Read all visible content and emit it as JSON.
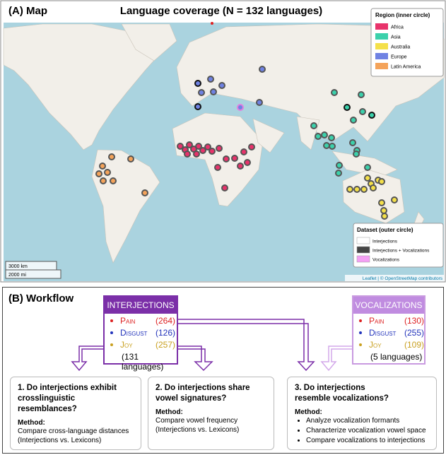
{
  "map": {
    "label": "(A) Map",
    "title": "Language coverage (N = 132 languages)",
    "region_legend": {
      "title": "Region (inner circle)",
      "items": [
        {
          "label": "Africa",
          "color": "#e8336b"
        },
        {
          "label": "Asia",
          "color": "#3bd1ab"
        },
        {
          "label": "Australia",
          "color": "#f4e04a"
        },
        {
          "label": "Europe",
          "color": "#6f82e3"
        },
        {
          "label": "Latin America",
          "color": "#f4a35a"
        }
      ]
    },
    "dataset_legend": {
      "title": "Dataset (outer circle)",
      "items": [
        {
          "label": "Interjections",
          "color": "#ffffff"
        },
        {
          "label": "Interjections + Vocalizations",
          "color": "#444444"
        },
        {
          "label": "Vocalizations",
          "color": "#f4a0f4"
        }
      ]
    },
    "scale": [
      "3000 km",
      "2000 mi"
    ],
    "attribution": "Leaflet | © OpenStreetMap contributors"
  },
  "workflow": {
    "label": "(B) Workflow",
    "datasets": [
      {
        "title": "INTERJECTIONS",
        "items": [
          {
            "emotion": "Pain",
            "count": "(264)"
          },
          {
            "emotion": "Disgust",
            "count": "(126)"
          },
          {
            "emotion": "Joy",
            "count": "(257)"
          }
        ],
        "note": "(131 languages)"
      },
      {
        "title": "VOCALIZATIONS",
        "items": [
          {
            "emotion": "Pain",
            "count": "(130)"
          },
          {
            "emotion": "Disgust",
            "count": "(255)"
          },
          {
            "emotion": "Joy",
            "count": "(109)"
          }
        ],
        "note": "(5 languages)"
      }
    ],
    "questions": [
      {
        "title": [
          "1. Do interjections exhibit",
          "crosslinguistic resemblances?"
        ],
        "method_label": "Method:",
        "method": [
          "Compare cross-language distances",
          "(Interjections vs. Lexicons)"
        ]
      },
      {
        "title": [
          "2. Do interjections share",
          "vowel signatures?"
        ],
        "method_label": "Method:",
        "method": [
          "Compare vowel frequency",
          "(Interjections vs. Lexicons)"
        ]
      },
      {
        "title": [
          "3. Do interjections",
          "resemble vocalizations?"
        ],
        "method_label": "Method:",
        "method": [
          "Analyze vocalization formants",
          "Characterize vocalization vowel space",
          "Compare vocalizations to interjections"
        ]
      }
    ]
  }
}
